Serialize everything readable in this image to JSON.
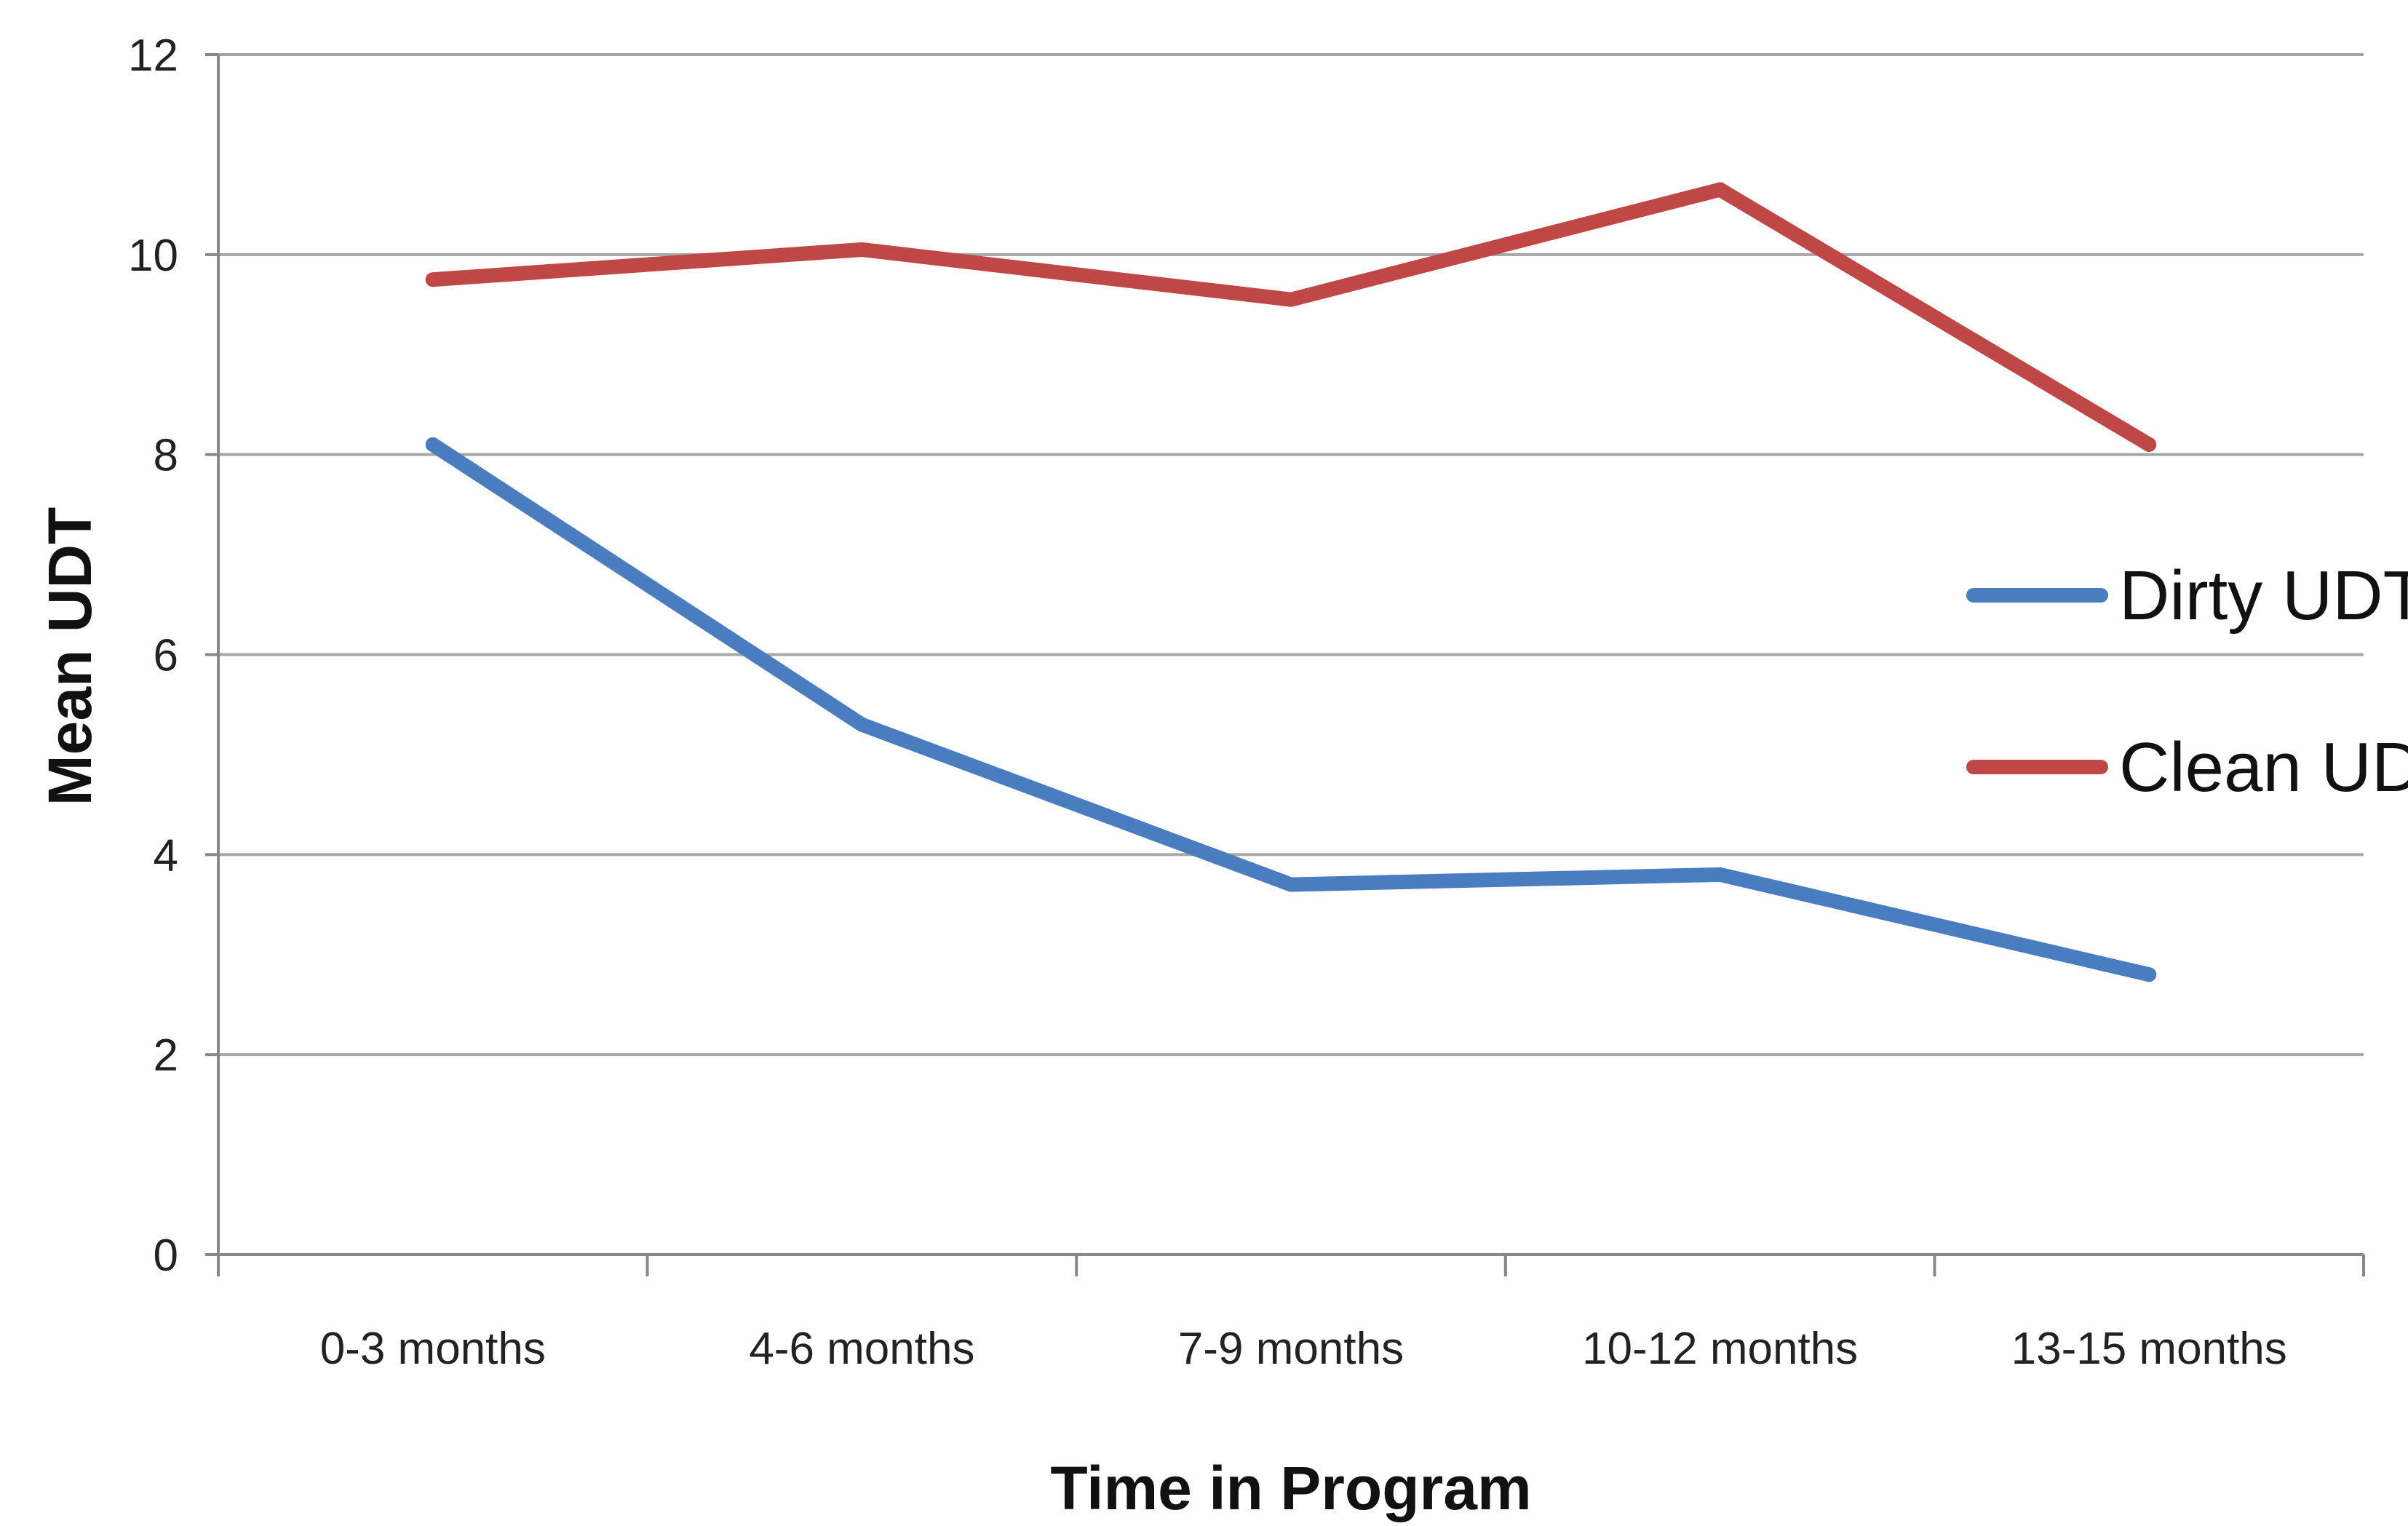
{
  "chart_data": {
    "type": "line",
    "title": "",
    "xlabel": "Time in Program",
    "ylabel": "Mean UDT",
    "categories": [
      "0-3 months",
      "4-6 months",
      "7-9 months",
      "10-12 months",
      "13-15 months"
    ],
    "ylim": [
      0,
      12
    ],
    "yticks": [
      0,
      2,
      4,
      6,
      8,
      10,
      12
    ],
    "grid": true,
    "legend_position": "right",
    "series": [
      {
        "name": "Dirty UDT",
        "color": "#4a7cc0",
        "values": [
          8.1,
          5.3,
          3.7,
          3.8,
          2.8
        ]
      },
      {
        "name": "Clean UDT",
        "color": "#bf4745",
        "values": [
          9.75,
          10.05,
          9.55,
          10.65,
          8.1
        ]
      }
    ]
  }
}
